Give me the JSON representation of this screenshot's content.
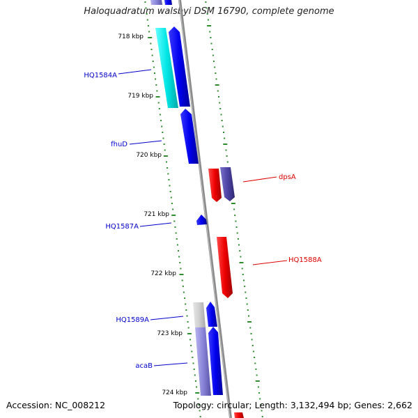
{
  "title": "Haloquadratum walsbyi DSM 16790, complete genome",
  "footer": {
    "accession": "Accession: NC_008212",
    "summary": "Topology: circular; Length: 3,132,494 bp; Genes: 2,662"
  },
  "colors": {
    "backbone": "#8a8a8a",
    "tick_dots": "#2e8b2e",
    "plus_strand_label": "#0000cc",
    "minus_strand_label": "#dd0000"
  },
  "kbp_ticks": [
    "718 kbp",
    "719 kbp",
    "720 kbp",
    "721 kbp",
    "722 kbp",
    "723 kbp",
    "724 kbp"
  ],
  "gene_labels": [
    {
      "text": "HQ1584A",
      "color": "#0000cc"
    },
    {
      "text": "fhuD",
      "color": "#0000cc"
    },
    {
      "text": "dpsA",
      "color": "#dd0000"
    },
    {
      "text": "HQ1587A",
      "color": "#0000cc"
    },
    {
      "text": "HQ1588A",
      "color": "#dd0000"
    },
    {
      "text": "HQ1589A",
      "color": "#0000cc"
    },
    {
      "text": "acaB",
      "color": "#0000cc"
    }
  ]
}
